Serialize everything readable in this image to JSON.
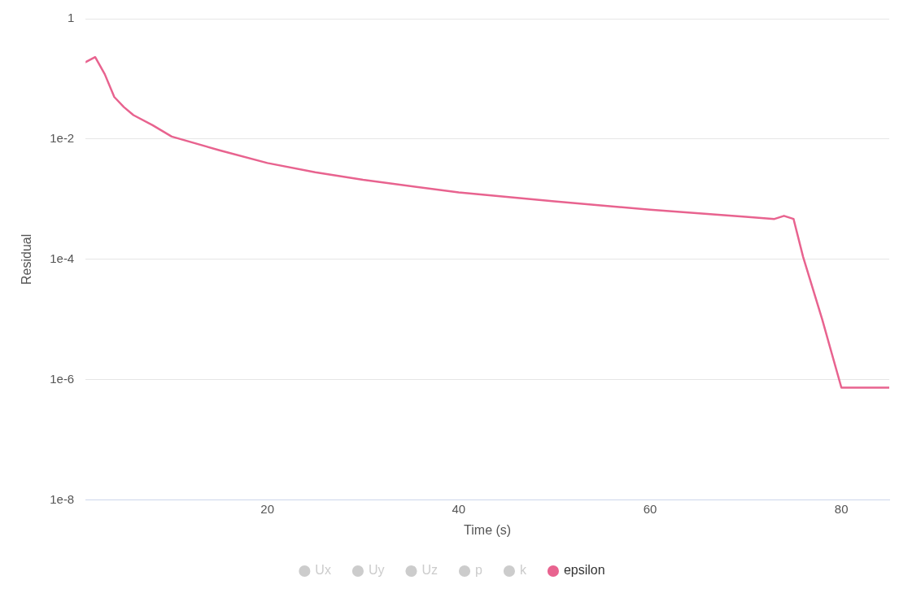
{
  "chart_data": {
    "type": "line",
    "xlabel": "Time (s)",
    "ylabel": "Residual",
    "log": "y",
    "grid": "y",
    "legend": "bottom",
    "marker": "none",
    "line_style": "solid",
    "xlim": [
      1,
      85
    ],
    "xticks": [
      20,
      40,
      60,
      80
    ],
    "ylim": [
      1e-08,
      1
    ],
    "yticks": [
      1,
      {
        "value": 0.01,
        "label": "1e-2"
      },
      {
        "value": 0.0001,
        "label": "1e-4"
      },
      {
        "value": 1e-06,
        "label": "1e-6"
      },
      {
        "value": 1e-08,
        "label": "1e-8"
      }
    ],
    "x": [
      1,
      2,
      3,
      4,
      5,
      6,
      8,
      10,
      15,
      20,
      25,
      30,
      40,
      50,
      60,
      70,
      73,
      74,
      75,
      76,
      78,
      80,
      85
    ],
    "series": [
      {
        "name": "Ux",
        "color": "#cccccc",
        "values": [
          null,
          null,
          null,
          null,
          null,
          null,
          null,
          null,
          null,
          null,
          null,
          null,
          null,
          null,
          null,
          null,
          null,
          null,
          null,
          null,
          null,
          null,
          null
        ]
      },
      {
        "name": "Uy",
        "color": "#cccccc",
        "values": [
          null,
          null,
          null,
          null,
          null,
          null,
          null,
          null,
          null,
          null,
          null,
          null,
          null,
          null,
          null,
          null,
          null,
          null,
          null,
          null,
          null,
          null,
          null
        ]
      },
      {
        "name": "Uz",
        "color": "#cccccc",
        "values": [
          null,
          null,
          null,
          null,
          null,
          null,
          null,
          null,
          null,
          null,
          null,
          null,
          null,
          null,
          null,
          null,
          null,
          null,
          null,
          null,
          null,
          null,
          null
        ]
      },
      {
        "name": "p",
        "color": "#cccccc",
        "values": [
          null,
          null,
          null,
          null,
          null,
          null,
          null,
          null,
          null,
          null,
          null,
          null,
          null,
          null,
          null,
          null,
          null,
          null,
          null,
          null,
          null,
          null,
          null
        ]
      },
      {
        "name": "k",
        "color": "#cccccc",
        "values": [
          null,
          null,
          null,
          null,
          null,
          null,
          null,
          null,
          null,
          null,
          null,
          null,
          null,
          null,
          null,
          null,
          null,
          null,
          null,
          null,
          null,
          null,
          null
        ]
      },
      {
        "name": "epsilon",
        "color": "#e8638f",
        "values": [
          0.19,
          0.23,
          0.12,
          0.05,
          0.034,
          0.025,
          0.017,
          0.011,
          0.0065,
          0.004,
          0.0028,
          0.0021,
          0.0013,
          0.00092,
          0.00067,
          0.00051,
          0.00047,
          0.00053,
          0.00047,
          0.00011,
          1e-05,
          7.4e-07,
          7.4e-07
        ]
      }
    ]
  }
}
